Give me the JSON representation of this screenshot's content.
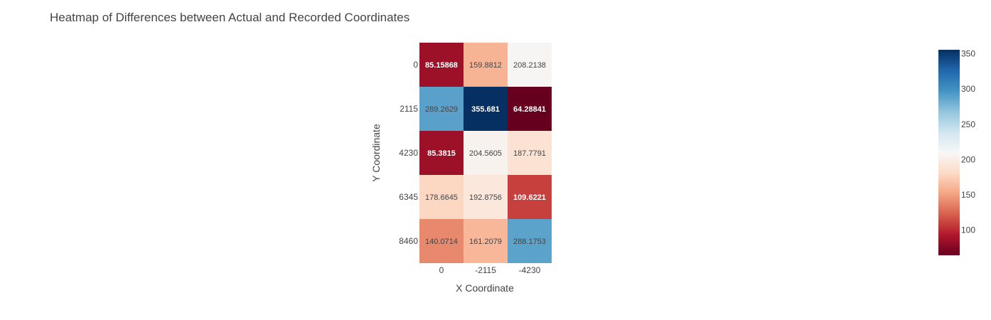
{
  "chart_data": {
    "type": "heatmap",
    "title": "Heatmap of Differences between Actual and Recorded Coordinates",
    "xlabel": "X Coordinate",
    "ylabel": "Y Coordinate",
    "x_categories": [
      "0",
      "-2115",
      "-4230"
    ],
    "y_categories": [
      "0",
      "2115",
      "4230",
      "6345",
      "8460"
    ],
    "z": [
      [
        85.15868,
        159.8812,
        208.2138
      ],
      [
        289.2629,
        355.681,
        64.28841
      ],
      [
        85.3815,
        204.5605,
        187.7791
      ],
      [
        178.6645,
        192.8756,
        109.6221
      ],
      [
        140.0714,
        161.2079,
        288.1753
      ]
    ],
    "z_labels": [
      [
        "85.15868",
        "159.8812",
        "208.2138"
      ],
      [
        "289.2629",
        "355.681",
        "64.28841"
      ],
      [
        "85.3815",
        "204.5605",
        "187.7791"
      ],
      [
        "178.6645",
        "192.8756",
        "109.6221"
      ],
      [
        "140.0714",
        "161.2079",
        "288.1753"
      ]
    ],
    "colorscale": "RdBu",
    "zmin": 64.28841,
    "zmax": 355.681,
    "colorbar_ticks": [
      100,
      150,
      200,
      250,
      300,
      350
    ],
    "colorbar_tick_labels": [
      "100",
      "150",
      "200",
      "250",
      "300",
      "350"
    ],
    "colorscale_stops": [
      "#67001f",
      "#b2182b",
      "#d6604d",
      "#f4a582",
      "#fddbc7",
      "#f7f7f7",
      "#d1e5f0",
      "#92c5de",
      "#4393c3",
      "#2166ac",
      "#053061"
    ]
  }
}
